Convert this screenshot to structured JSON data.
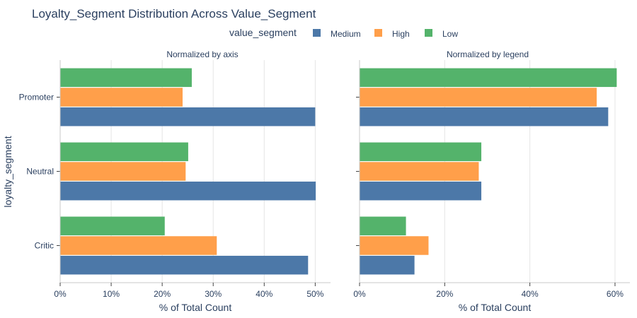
{
  "title": "Loyalty_Segment Distribution Across Value_Segment",
  "legend": {
    "title": "value_segment",
    "entries": [
      {
        "name": "Medium",
        "color": "#4c78a8"
      },
      {
        "name": "High",
        "color": "#ff9f4a"
      },
      {
        "name": "Low",
        "color": "#54b36b"
      }
    ]
  },
  "y_axis_title": "loyalty_segment",
  "chart_data": [
    {
      "type": "bar",
      "orientation": "horizontal",
      "subtitle": "Normalized by axis",
      "xlabel": "% of Total Count",
      "xlim": [
        0,
        53
      ],
      "xticks": [
        0,
        10,
        20,
        30,
        40,
        50
      ],
      "tick_suffix": "%",
      "categories": [
        "Promoter",
        "Neutral",
        "Critic"
      ],
      "series": [
        {
          "name": "Low",
          "color": "#54b36b",
          "values": [
            25.8,
            25.1,
            20.5
          ]
        },
        {
          "name": "High",
          "color": "#ff9f4a",
          "values": [
            24.0,
            24.6,
            30.7
          ]
        },
        {
          "name": "Medium",
          "color": "#4c78a8",
          "values": [
            50.0,
            50.1,
            48.6
          ]
        }
      ]
    },
    {
      "type": "bar",
      "orientation": "horizontal",
      "subtitle": "Normalized by legend",
      "xlabel": "% of Total Count",
      "xlim": [
        0,
        63.5
      ],
      "xticks": [
        0,
        20,
        40,
        60
      ],
      "tick_suffix": "%",
      "categories": [
        "Promoter",
        "Neutral",
        "Critic"
      ],
      "series": [
        {
          "name": "Low",
          "color": "#54b36b",
          "values": [
            60.4,
            28.6,
            10.9
          ]
        },
        {
          "name": "High",
          "color": "#ff9f4a",
          "values": [
            55.7,
            28.0,
            16.2
          ]
        },
        {
          "name": "Medium",
          "color": "#4c78a8",
          "values": [
            58.4,
            28.6,
            12.9
          ]
        }
      ]
    }
  ]
}
